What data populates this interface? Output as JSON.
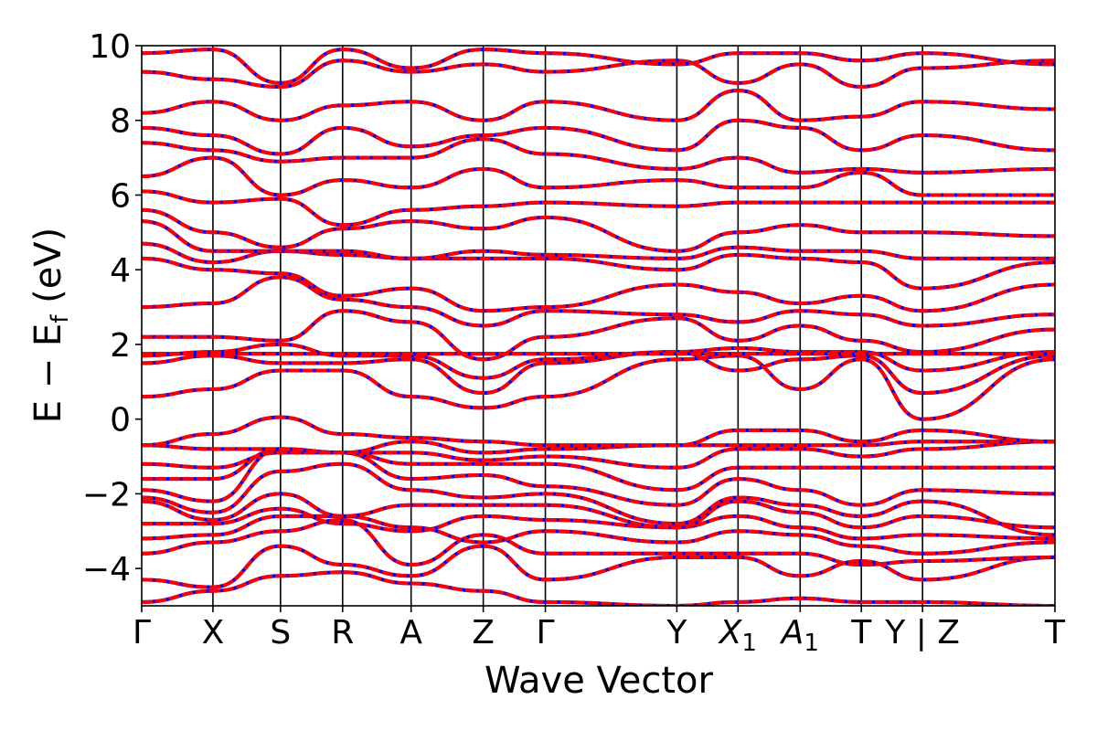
{
  "chart_data": {
    "type": "line",
    "xlabel": "Wave Vector",
    "ylabel": "E − E",
    "ylabel_sub": "f",
    "ylabel_unit": " (eV)",
    "ylim": [
      -5,
      10
    ],
    "yticks": [
      {
        "value": 10,
        "label": "10"
      },
      {
        "value": 8,
        "label": "8"
      },
      {
        "value": 6,
        "label": "6"
      },
      {
        "value": 4,
        "label": "4"
      },
      {
        "value": 2,
        "label": "2"
      },
      {
        "value": 0,
        "label": "0"
      },
      {
        "value": -2,
        "label": "−2"
      },
      {
        "value": -4,
        "label": "−4"
      }
    ],
    "xlim": [
      0,
      100
    ],
    "kpoints": [
      {
        "label": "Γ",
        "sub": "",
        "x": 0
      },
      {
        "label": "X",
        "sub": "",
        "x": 7.8
      },
      {
        "label": "S",
        "sub": "",
        "x": 15.2
      },
      {
        "label": "R",
        "sub": "",
        "x": 22.0
      },
      {
        "label": "A",
        "sub": "",
        "x": 29.5
      },
      {
        "label": "Z",
        "sub": "",
        "x": 37.4
      },
      {
        "label": "Γ",
        "sub": "",
        "x": 44.2
      },
      {
        "label": "Y",
        "sub": "",
        "x": 58.6
      },
      {
        "label": "X",
        "sub": "1",
        "x": 65.3
      },
      {
        "label": "A",
        "sub": "1",
        "x": 72.1
      },
      {
        "label": "T",
        "sub": "",
        "x": 78.8
      },
      {
        "label": "Y | Z",
        "sub": "",
        "x": 85.5
      },
      {
        "label": "T",
        "sub": "",
        "x": 100
      }
    ],
    "grid": false,
    "legend": "none",
    "colors": {
      "series_a": "#0000ff",
      "series_b": "#ff0000",
      "vlines": "#000000"
    },
    "flat_band": 1.75,
    "bands": [
      [
        -4.9,
        -4.6,
        -4.2,
        -4.1,
        -4.4,
        -4.6,
        -4.9,
        -5.0,
        -4.9,
        -4.8,
        -4.9,
        -4.9,
        -5.0
      ],
      [
        -4.3,
        -4.5,
        -3.4,
        -3.9,
        -4.2,
        -3.4,
        -4.3,
        -3.7,
        -3.7,
        -4.2,
        -3.8,
        -4.3,
        -3.7
      ],
      [
        -3.6,
        -3.3,
        -3.0,
        -2.7,
        -3.9,
        -3.1,
        -3.6,
        -3.6,
        -3.6,
        -3.6,
        -3.9,
        -3.8,
        -3.7
      ],
      [
        -3.2,
        -3.1,
        -2.6,
        -2.6,
        -2.9,
        -3.3,
        -3.0,
        -3.3,
        -3.0,
        -3.1,
        -3.4,
        -3.6,
        -3.3
      ],
      [
        -2.8,
        -2.8,
        -2.4,
        -2.8,
        -3.0,
        -2.6,
        -2.7,
        -2.9,
        -2.6,
        -2.9,
        -3.2,
        -3.1,
        -3.2
      ],
      [
        -2.2,
        -2.7,
        -2.0,
        -2.6,
        -2.3,
        -2.3,
        -2.3,
        -2.9,
        -2.2,
        -2.5,
        -2.9,
        -2.6,
        -2.9
      ],
      [
        -2.1,
        -2.5,
        -1.4,
        -1.2,
        -1.9,
        -2.1,
        -2.0,
        -2.8,
        -2.1,
        -2.3,
        -2.6,
        -2.2,
        -3.1
      ],
      [
        -1.9,
        -2.2,
        -0.8,
        -0.9,
        -1.6,
        -1.5,
        -1.8,
        -2.3,
        -1.6,
        -1.9,
        -2.3,
        -1.9,
        -2.0
      ],
      [
        -1.6,
        -1.6,
        -0.8,
        -0.9,
        -1.2,
        -1.2,
        -1.2,
        -1.9,
        -1.3,
        -1.3,
        -1.3,
        -1.3,
        -1.3
      ],
      [
        -1.2,
        -1.3,
        -0.9,
        -0.9,
        -0.9,
        -1.1,
        -1.0,
        -1.3,
        -0.8,
        -0.8,
        -1.0,
        -0.8,
        -0.6
      ],
      [
        -0.7,
        -0.8,
        -0.8,
        -0.9,
        -0.6,
        -0.9,
        -0.8,
        -0.7,
        -0.7,
        -0.7,
        -0.7,
        -0.6,
        -0.6
      ],
      [
        -0.7,
        -0.4,
        0.05,
        -0.4,
        -0.5,
        -0.6,
        -0.7,
        -0.7,
        -0.3,
        -0.3,
        -0.6,
        -0.3,
        -0.6
      ],
      [
        0.6,
        0.8,
        1.3,
        1.3,
        0.6,
        0.3,
        0.6,
        1.6,
        1.7,
        0.8,
        1.6,
        0.0,
        1.6
      ],
      [
        1.5,
        1.7,
        1.5,
        1.5,
        1.6,
        0.7,
        1.5,
        1.8,
        1.3,
        1.6,
        1.7,
        0.7,
        1.7
      ],
      [
        1.7,
        1.8,
        2.0,
        1.7,
        1.7,
        1.1,
        1.6,
        1.8,
        1.9,
        1.8,
        1.8,
        1.3,
        1.8
      ],
      [
        2.2,
        2.2,
        2.1,
        2.9,
        2.6,
        1.6,
        2.2,
        2.7,
        2.1,
        2.5,
        2.1,
        1.8,
        2.4
      ],
      [
        3.0,
        3.1,
        3.8,
        3.2,
        3.0,
        2.5,
        2.9,
        2.8,
        2.6,
        2.9,
        2.8,
        2.5,
        2.8
      ],
      [
        4.3,
        4.0,
        3.9,
        3.3,
        3.5,
        2.9,
        3.0,
        3.6,
        3.4,
        3.1,
        3.3,
        2.9,
        3.6
      ],
      [
        4.7,
        4.2,
        4.5,
        4.4,
        4.3,
        4.3,
        4.3,
        4.0,
        4.4,
        4.3,
        4.2,
        3.5,
        4.2
      ],
      [
        5.3,
        4.5,
        4.5,
        4.5,
        4.3,
        4.5,
        4.4,
        4.3,
        4.6,
        4.5,
        4.5,
        4.3,
        4.3
      ],
      [
        5.6,
        5.0,
        4.6,
        5.1,
        5.3,
        5.1,
        5.4,
        4.5,
        5.0,
        5.2,
        5.0,
        5.0,
        4.9
      ],
      [
        6.1,
        5.8,
        5.9,
        5.2,
        5.6,
        5.7,
        5.8,
        5.7,
        5.8,
        5.8,
        5.8,
        5.8,
        5.8
      ],
      [
        6.5,
        7.0,
        6.0,
        6.4,
        6.2,
        6.7,
        6.2,
        6.4,
        6.2,
        6.2,
        6.6,
        6.0,
        6.0
      ],
      [
        7.4,
        7.2,
        6.9,
        7.0,
        7.0,
        7.5,
        7.1,
        6.7,
        7.0,
        6.6,
        6.7,
        6.6,
        6.7
      ],
      [
        7.8,
        7.6,
        7.1,
        7.8,
        7.3,
        7.6,
        7.8,
        7.2,
        8.0,
        7.8,
        7.2,
        7.6,
        7.2
      ],
      [
        8.2,
        8.5,
        8.0,
        8.4,
        8.5,
        8.0,
        8.5,
        8.0,
        8.8,
        8.0,
        8.1,
        8.5,
        8.3
      ],
      [
        9.3,
        9.1,
        8.9,
        9.6,
        9.3,
        9.5,
        9.3,
        9.6,
        9.0,
        9.5,
        8.9,
        9.4,
        9.6
      ],
      [
        9.8,
        9.9,
        9.0,
        9.9,
        9.4,
        9.9,
        9.8,
        9.5,
        9.8,
        9.8,
        9.6,
        9.8,
        9.5
      ]
    ]
  }
}
